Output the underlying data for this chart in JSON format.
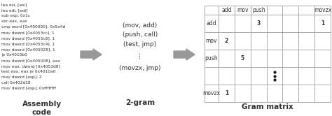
{
  "fig_width": 4.74,
  "fig_height": 1.66,
  "bg_color": "#ffffff",
  "asm_lines": [
    "lea esi, [esi]",
    "lea edi, [edi]",
    "sub esp, 0x1c",
    "xor eax, eax",
    "cmp word [0x400000], 0x5a4d",
    "mov dword [0x4053cc], 1",
    "mov dword [0x4053c8], 1",
    "mov dword [0x4053c4], 1",
    "mov dword [0x405028], 1",
    "je 0x4010b0",
    "mov dword [0x405008], eax",
    "mov eax, dword [0x4053d8]",
    "test eax, eax je 0x4010a0",
    "mov dword [esp], 2",
    "call 0x402d18",
    "mov dword [esp], 0xffffffff"
  ],
  "asm_label": "Assembly\ncode",
  "gram_lines": [
    "(mov, add)",
    "(push, call)",
    "(test, jmp)",
    "⋮",
    "(movzx, jmp)"
  ],
  "gram_label": "2-gram",
  "matrix_col_labels": [
    "add",
    "mov",
    "push",
    "",
    "",
    "",
    "movzx"
  ],
  "matrix_row_labels": [
    "add",
    "mov",
    "push",
    "",
    "movzx"
  ],
  "matrix_values": {
    "0,2": "3",
    "0,6": "1",
    "1,0": "2",
    "2,1": "5",
    "4,0": "1"
  },
  "matrix_dots_row": 3,
  "matrix_dots_col": 3,
  "matrix_label": "Gram matrix",
  "arrow_color": "#999999",
  "text_color": "#333333",
  "grid_color": "#aaaaaa",
  "font_size_asm": 4.2,
  "font_size_gram": 6.5,
  "font_size_label": 7.5,
  "font_size_matrix": 5.5,
  "font_size_matrix_label": 7.5
}
